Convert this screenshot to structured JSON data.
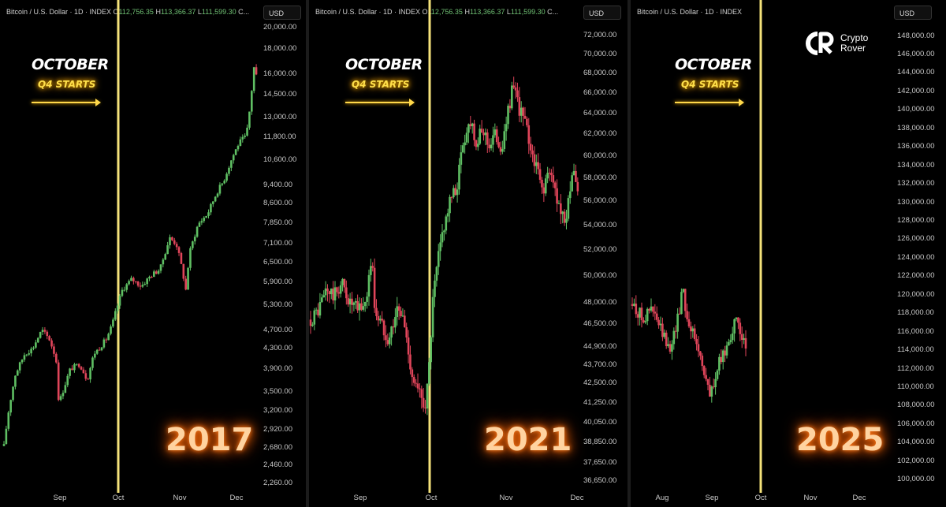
{
  "header": {
    "title": "Bitcoin / U.S. Dollar · 1D · INDEX",
    "o_label": "O",
    "o_value": "112,756.35",
    "h_label": "H",
    "h_value": "113,366.37",
    "l_label": "L",
    "l_value": "111,599.30",
    "c_label": "C..."
  },
  "currency_label": "USD",
  "annotation": {
    "month": "OCTOBER",
    "subtitle": "Q4 STARTS"
  },
  "brand": {
    "line1": "Crypto",
    "line2": "Rover"
  },
  "colors": {
    "up": "#5fbf63",
    "down": "#e0455a",
    "marker": "#f5e27a",
    "glow": "#ff7a1a",
    "accent": "#ffe04a"
  },
  "chart_data": [
    {
      "type": "candlestick",
      "year_label": "2017",
      "scale": "log",
      "y_ticks": [
        "20,000.00",
        "18,000.00",
        "16,000.00",
        "14,500.00",
        "13,000.00",
        "11,800.00",
        "10,600.00",
        "9,400.00",
        "8,600.00",
        "7,850.00",
        "7,100.00",
        "6,500.00",
        "5,900.00",
        "5,300.00",
        "4,700.00",
        "4,300.00",
        "3,900.00",
        "3,500.00",
        "3,200.00",
        "2,920.00",
        "2,680.00",
        "2,460.00",
        "2,260.00"
      ],
      "x_ticks": [
        "Sep",
        "Oct",
        "Nov",
        "Dec"
      ],
      "ylim": [
        2200,
        20500
      ],
      "marker_label": "Oct",
      "approx_path": [
        [
          0,
          2700
        ],
        [
          5,
          3200
        ],
        [
          12,
          3800
        ],
        [
          22,
          4200
        ],
        [
          30,
          4300
        ],
        [
          40,
          4700
        ],
        [
          48,
          4500
        ],
        [
          55,
          4100
        ],
        [
          58,
          3300
        ],
        [
          62,
          3500
        ],
        [
          70,
          3900
        ],
        [
          80,
          4000
        ],
        [
          88,
          3700
        ],
        [
          95,
          4200
        ],
        [
          100,
          4300
        ],
        [
          108,
          4500
        ],
        [
          114,
          4800
        ],
        [
          125,
          5700
        ],
        [
          135,
          6000
        ],
        [
          145,
          5800
        ],
        [
          155,
          6100
        ],
        [
          165,
          6300
        ],
        [
          175,
          7300
        ],
        [
          182,
          7100
        ],
        [
          188,
          6300
        ],
        [
          192,
          5700
        ],
        [
          196,
          6800
        ],
        [
          205,
          7800
        ],
        [
          215,
          8200
        ],
        [
          225,
          9100
        ],
        [
          232,
          9600
        ],
        [
          240,
          10600
        ],
        [
          248,
          11500
        ],
        [
          256,
          11900
        ],
        [
          260,
          13700
        ],
        [
          264,
          16500
        ],
        [
          266,
          15500
        ],
        [
          268,
          17500
        ]
      ]
    },
    {
      "type": "candlestick",
      "year_label": "2021",
      "scale": "log",
      "y_ticks": [
        "72,000.00",
        "70,000.00",
        "68,000.00",
        "66,000.00",
        "64,000.00",
        "62,000.00",
        "60,000.00",
        "58,000.00",
        "56,000.00",
        "54,000.00",
        "52,000.00",
        "50,000.00",
        "48,000.00",
        "46,500.00",
        "44,900.00",
        "43,700.00",
        "42,500.00",
        "41,250.00",
        "40,050.00",
        "38,850.00",
        "37,650.00",
        "36,650.00"
      ],
      "x_ticks": [
        "Sep",
        "Oct",
        "Nov",
        "Dec"
      ],
      "ylim": [
        36200,
        73500
      ],
      "marker_label": "Oct",
      "approx_path": [
        [
          0,
          46800
        ],
        [
          10,
          47500
        ],
        [
          20,
          49000
        ],
        [
          30,
          48500
        ],
        [
          40,
          49500
        ],
        [
          50,
          48000
        ],
        [
          60,
          47500
        ],
        [
          70,
          48000
        ],
        [
          78,
          51500
        ],
        [
          82,
          47500
        ],
        [
          90,
          46500
        ],
        [
          100,
          45500
        ],
        [
          110,
          47500
        ],
        [
          118,
          47000
        ],
        [
          125,
          44500
        ],
        [
          130,
          43000
        ],
        [
          136,
          42000
        ],
        [
          142,
          41500
        ],
        [
          146,
          41200
        ],
        [
          150,
          42500
        ],
        [
          156,
          48000
        ],
        [
          162,
          51000
        ],
        [
          170,
          54000
        ],
        [
          178,
          56000
        ],
        [
          186,
          57000
        ],
        [
          195,
          61500
        ],
        [
          205,
          63500
        ],
        [
          212,
          61000
        ],
        [
          220,
          62500
        ],
        [
          228,
          61000
        ],
        [
          236,
          62000
        ],
        [
          245,
          60500
        ],
        [
          252,
          64500
        ],
        [
          258,
          66500
        ],
        [
          264,
          65000
        ],
        [
          272,
          63500
        ],
        [
          280,
          61000
        ],
        [
          288,
          59000
        ],
        [
          296,
          57000
        ],
        [
          304,
          58500
        ],
        [
          312,
          57000
        ],
        [
          318,
          55500
        ],
        [
          324,
          54000
        ],
        [
          330,
          57000
        ],
        [
          336,
          58000
        ],
        [
          342,
          56800
        ]
      ]
    },
    {
      "type": "candlestick",
      "year_label": "2025",
      "scale": "linear",
      "y_ticks": [
        "148,000.00",
        "146,000.00",
        "144,000.00",
        "142,000.00",
        "140,000.00",
        "138,000.00",
        "136,000.00",
        "134,000.00",
        "132,000.00",
        "130,000.00",
        "128,000.00",
        "126,000.00",
        "124,000.00",
        "122,000.00",
        "120,000.00",
        "118,000.00",
        "116,000.00",
        "114,000.00",
        "112,000.00",
        "110,000.00",
        "108,000.00",
        "106,000.00",
        "104,000.00",
        "102,000.00",
        "100,000.00"
      ],
      "x_ticks": [
        "Aug",
        "Sep",
        "Oct",
        "Nov",
        "Dec"
      ],
      "ylim": [
        99000,
        149500
      ],
      "marker_label": "Oct",
      "approx_path": [
        [
          0,
          119000
        ],
        [
          8,
          118000
        ],
        [
          16,
          117500
        ],
        [
          24,
          118500
        ],
        [
          32,
          117000
        ],
        [
          40,
          115500
        ],
        [
          46,
          114000
        ],
        [
          54,
          116000
        ],
        [
          60,
          118500
        ],
        [
          64,
          121500
        ],
        [
          68,
          118000
        ],
        [
          74,
          116500
        ],
        [
          80,
          115000
        ],
        [
          86,
          113500
        ],
        [
          92,
          111500
        ],
        [
          98,
          109000
        ],
        [
          104,
          110500
        ],
        [
          110,
          112500
        ],
        [
          116,
          113500
        ],
        [
          122,
          115000
        ],
        [
          128,
          116500
        ],
        [
          134,
          117000
        ],
        [
          140,
          115500
        ],
        [
          146,
          112500
        ]
      ]
    }
  ]
}
